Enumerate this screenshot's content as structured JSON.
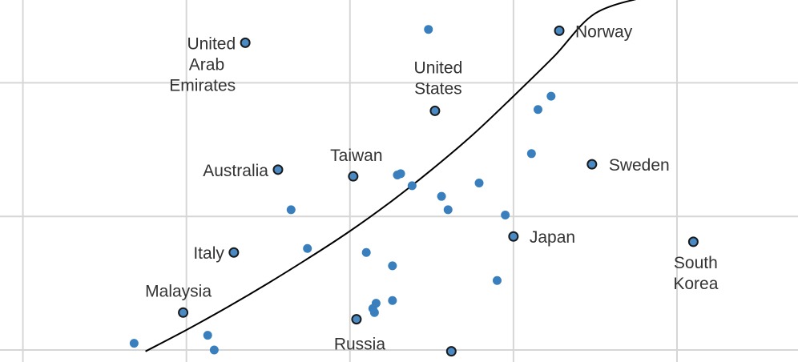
{
  "chart_data": {
    "type": "scatter",
    "title": "",
    "xlabel": "",
    "ylabel": "",
    "xlim": [
      -0.14,
      4.74
    ],
    "ylim": [
      -0.09,
      2.62
    ],
    "grid": true,
    "colors": {
      "point": "#3a7fbd",
      "labeled_point_fill": "#4a8ac4",
      "labeled_point_stroke": "#1a1a1a",
      "curve": "#000000",
      "grid": "#d6d6d6",
      "label": "#333333"
    },
    "labeled_points": [
      {
        "name": [
          "United",
          "Arab",
          "Emirates"
        ],
        "x": 1.36,
        "y": 2.3
      },
      {
        "name": [
          "Norway"
        ],
        "x": 3.28,
        "y": 2.39
      },
      {
        "name": [
          "United",
          "States"
        ],
        "x": 2.52,
        "y": 1.79
      },
      {
        "name": [
          "Australia"
        ],
        "x": 1.56,
        "y": 1.35
      },
      {
        "name": [
          "Taiwan"
        ],
        "x": 2.02,
        "y": 1.3
      },
      {
        "name": [
          "Sweden"
        ],
        "x": 3.48,
        "y": 1.39
      },
      {
        "name": [
          "Japan"
        ],
        "x": 3.0,
        "y": 0.85
      },
      {
        "name": [
          "Italy"
        ],
        "x": 1.29,
        "y": 0.73
      },
      {
        "name": [
          "South",
          "Korea"
        ],
        "x": 4.1,
        "y": 0.81
      },
      {
        "name": [
          "Malaysia"
        ],
        "x": 0.98,
        "y": 0.28
      },
      {
        "name": [
          "Russia"
        ],
        "x": 2.04,
        "y": 0.23
      },
      {
        "name": [],
        "x": 2.62,
        "y": -0.01
      }
    ],
    "points": [
      {
        "x": 2.48,
        "y": 2.4
      },
      {
        "x": 3.15,
        "y": 1.8
      },
      {
        "x": 3.23,
        "y": 1.9
      },
      {
        "x": 3.11,
        "y": 1.47
      },
      {
        "x": 2.29,
        "y": 1.31
      },
      {
        "x": 2.31,
        "y": 1.32
      },
      {
        "x": 2.38,
        "y": 1.23
      },
      {
        "x": 2.56,
        "y": 1.15
      },
      {
        "x": 2.79,
        "y": 1.25
      },
      {
        "x": 2.6,
        "y": 1.05
      },
      {
        "x": 1.64,
        "y": 1.05
      },
      {
        "x": 2.95,
        "y": 1.01
      },
      {
        "x": 1.74,
        "y": 0.76
      },
      {
        "x": 2.1,
        "y": 0.73
      },
      {
        "x": 2.26,
        "y": 0.63
      },
      {
        "x": 2.9,
        "y": 0.52
      },
      {
        "x": 2.14,
        "y": 0.31
      },
      {
        "x": 2.15,
        "y": 0.28
      },
      {
        "x": 2.16,
        "y": 0.35
      },
      {
        "x": 2.26,
        "y": 0.37
      },
      {
        "x": 0.68,
        "y": 0.05
      },
      {
        "x": 1.13,
        "y": 0.11
      },
      {
        "x": 1.17,
        "y": 0.0
      }
    ],
    "curve": {
      "x": [
        0.75,
        1.0,
        1.25,
        1.5,
        1.75,
        2.0,
        2.25,
        2.5,
        2.75,
        3.0,
        3.25,
        3.5,
        3.83
      ],
      "y": [
        -0.01,
        0.15,
        0.32,
        0.5,
        0.69,
        0.89,
        1.11,
        1.35,
        1.61,
        1.9,
        2.2,
        2.52,
        2.65
      ]
    }
  }
}
